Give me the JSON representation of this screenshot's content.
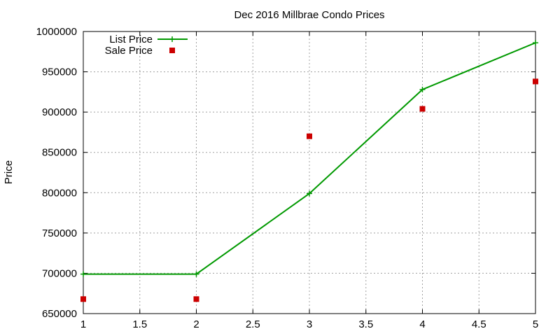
{
  "chart_data": {
    "type": "line",
    "title": "Dec 2016 Millbrae Condo Prices",
    "xlabel": "",
    "ylabel": "Price",
    "xlim": [
      1,
      5
    ],
    "ylim": [
      650000,
      1000000
    ],
    "xticks": [
      1,
      1.5,
      2,
      2.5,
      3,
      3.5,
      4,
      4.5,
      5
    ],
    "xtick_labels": [
      "1",
      "1.5",
      "2",
      "2.5",
      "3",
      "3.5",
      "4",
      "4.5",
      "5"
    ],
    "yticks": [
      650000,
      700000,
      750000,
      800000,
      850000,
      900000,
      950000,
      1000000
    ],
    "ytick_labels": [
      "650000",
      "700000",
      "750000",
      "800000",
      "850000",
      "900000",
      "950000",
      "1000000"
    ],
    "grid": true,
    "legend_position": "top-left",
    "series": [
      {
        "name": "List Price",
        "style": "line-with-plus-markers",
        "color": "#009900",
        "x": [
          1,
          2,
          3,
          4,
          5
        ],
        "y": [
          699000,
          699000,
          799000,
          928000,
          986000
        ]
      },
      {
        "name": "Sale Price",
        "style": "square-markers",
        "color": "#cc0000",
        "x": [
          1,
          2,
          3,
          4,
          5
        ],
        "y": [
          668000,
          668000,
          870000,
          904000,
          938000
        ]
      }
    ]
  }
}
